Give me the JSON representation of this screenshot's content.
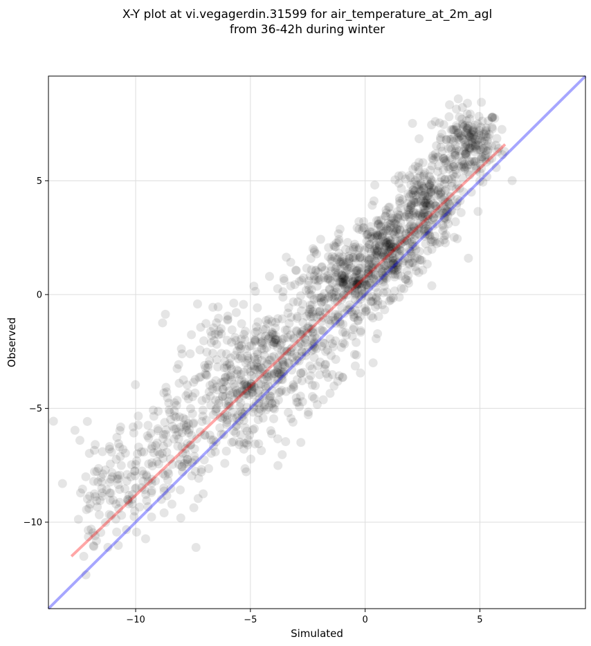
{
  "chart_data": {
    "type": "scatter",
    "title": "X-Y plot at vi.vegagerdin.31599 for air_temperature_at_2m_agl",
    "subtitle": "from 36-42h during winter",
    "xlabel": "Simulated",
    "ylabel": "Observed",
    "xlim": [
      -13.8,
      9.6
    ],
    "ylim": [
      -13.8,
      9.6
    ],
    "x_ticks": [
      -10,
      -5,
      0,
      5
    ],
    "y_ticks": [
      -10,
      -5,
      0,
      5
    ],
    "x_tick_labels": [
      "−10",
      "−5",
      "0",
      "5"
    ],
    "y_tick_labels": [
      "−10",
      "−5",
      "0",
      "5"
    ],
    "grid": true,
    "point_color": "#000000",
    "point_alpha": 0.1,
    "points": {
      "approximate_count": 1900,
      "clusters": [
        {
          "x_center": 4.5,
          "y_center": 6.6,
          "x_spread": 0.7,
          "y_spread": 0.8,
          "n": 220
        },
        {
          "x_center": 2.7,
          "y_center": 3.9,
          "x_spread": 0.8,
          "y_spread": 0.9,
          "n": 280
        },
        {
          "x_center": 1.0,
          "y_center": 1.9,
          "x_spread": 0.8,
          "y_spread": 0.9,
          "n": 260
        },
        {
          "x_center": -0.6,
          "y_center": 0.7,
          "x_spread": 0.8,
          "y_spread": 0.9,
          "n": 250
        },
        {
          "x_center": -2.0,
          "y_center": -1.5,
          "x_spread": 0.9,
          "y_spread": 1.4,
          "n": 180
        },
        {
          "x_center": -3.8,
          "y_center": -3.0,
          "x_spread": 0.9,
          "y_spread": 1.4,
          "n": 170
        },
        {
          "x_center": -5.3,
          "y_center": -4.3,
          "x_spread": 0.9,
          "y_spread": 1.5,
          "n": 160
        },
        {
          "x_center": -6.5,
          "y_center": -3.8,
          "x_spread": 0.9,
          "y_spread": 1.6,
          "n": 140
        },
        {
          "x_center": -8.3,
          "y_center": -6.5,
          "x_spread": 0.9,
          "y_spread": 1.3,
          "n": 110
        },
        {
          "x_center": -10.2,
          "y_center": -8.3,
          "x_spread": 1.0,
          "y_spread": 1.3,
          "n": 100
        },
        {
          "x_center": -11.8,
          "y_center": -8.8,
          "x_spread": 0.6,
          "y_spread": 1.3,
          "n": 40
        }
      ]
    },
    "lines": [
      {
        "color": "#ff0000",
        "alpha": 0.35,
        "x": [
          -12.8,
          6.1
        ],
        "y": [
          -11.5,
          6.6
        ]
      },
      {
        "color": "#0000ff",
        "alpha": 0.35,
        "x": [
          -13.8,
          9.6
        ],
        "y": [
          -13.8,
          9.6
        ]
      }
    ]
  }
}
